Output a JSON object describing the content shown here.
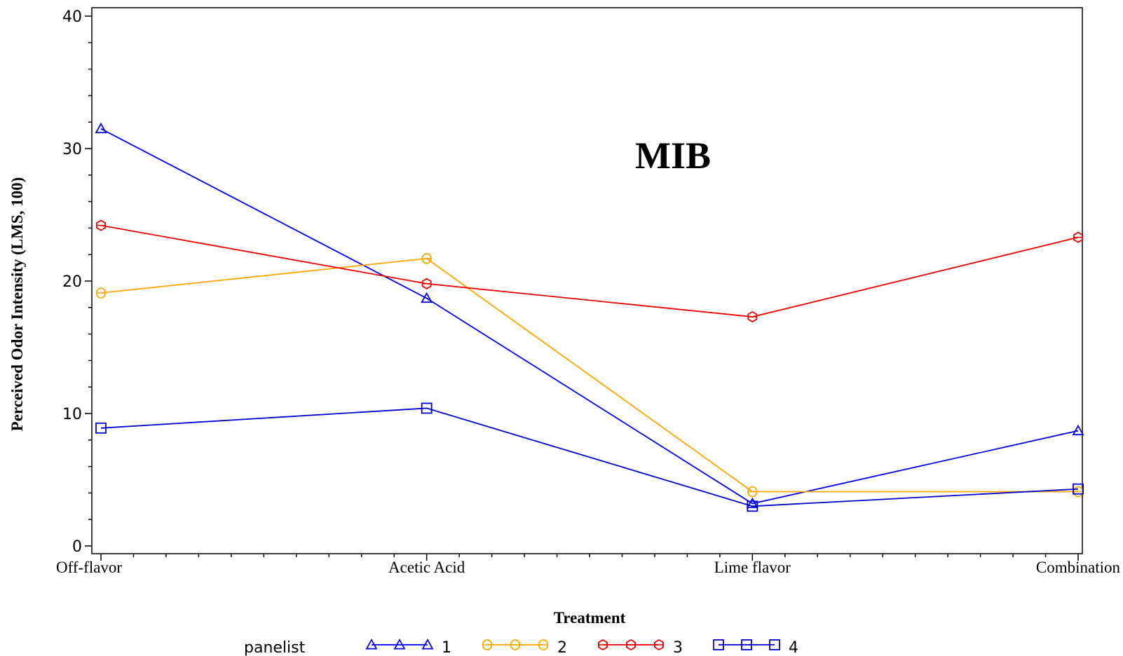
{
  "chart_data": {
    "type": "line",
    "title": "MIB",
    "xlabel": "Treatment",
    "ylabel": "Perceived Odor Intensity (LMS, 100)",
    "categories": [
      "Off-flavor",
      "Acetic Acid",
      "Lime flavor",
      "Combination"
    ],
    "ylim": [
      0,
      40
    ],
    "yticks": [
      "0",
      "10",
      "20",
      "30",
      "40"
    ],
    "grid": false,
    "legend": {
      "title": "panelist",
      "position": "bottom"
    },
    "series": [
      {
        "name": "1",
        "color": "#0000ee",
        "marker": "triangle",
        "values": [
          31.5,
          18.7,
          3.2,
          8.7
        ]
      },
      {
        "name": "2",
        "color": "#ffa500",
        "marker": "circle",
        "values": [
          19.1,
          21.7,
          4.1,
          4.1
        ]
      },
      {
        "name": "3",
        "color": "#ee0000",
        "marker": "hexagon",
        "values": [
          24.2,
          19.8,
          17.3,
          23.3
        ]
      },
      {
        "name": "4",
        "color": "#0000cc",
        "marker": "square",
        "values": [
          8.9,
          10.4,
          3.0,
          4.3
        ]
      }
    ]
  }
}
